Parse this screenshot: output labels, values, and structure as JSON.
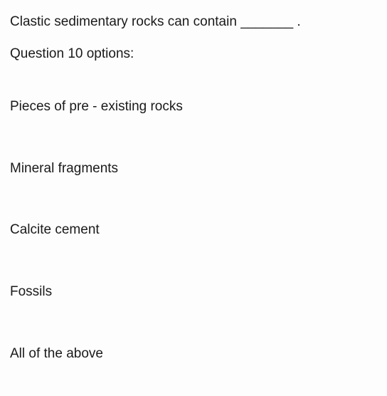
{
  "question": {
    "text": "Clastic sedimentary rocks can contain _______ .",
    "optionsLabel": "Question 10 options:",
    "options": [
      "Pieces of pre - existing rocks",
      "Mineral fragments",
      "Calcite cement",
      "Fossils",
      "All of the above"
    ]
  },
  "colors": {
    "background": "#fdfdfd",
    "text": "#1a1a1a"
  },
  "typography": {
    "fontSize": 19,
    "fontWeight": 400
  }
}
